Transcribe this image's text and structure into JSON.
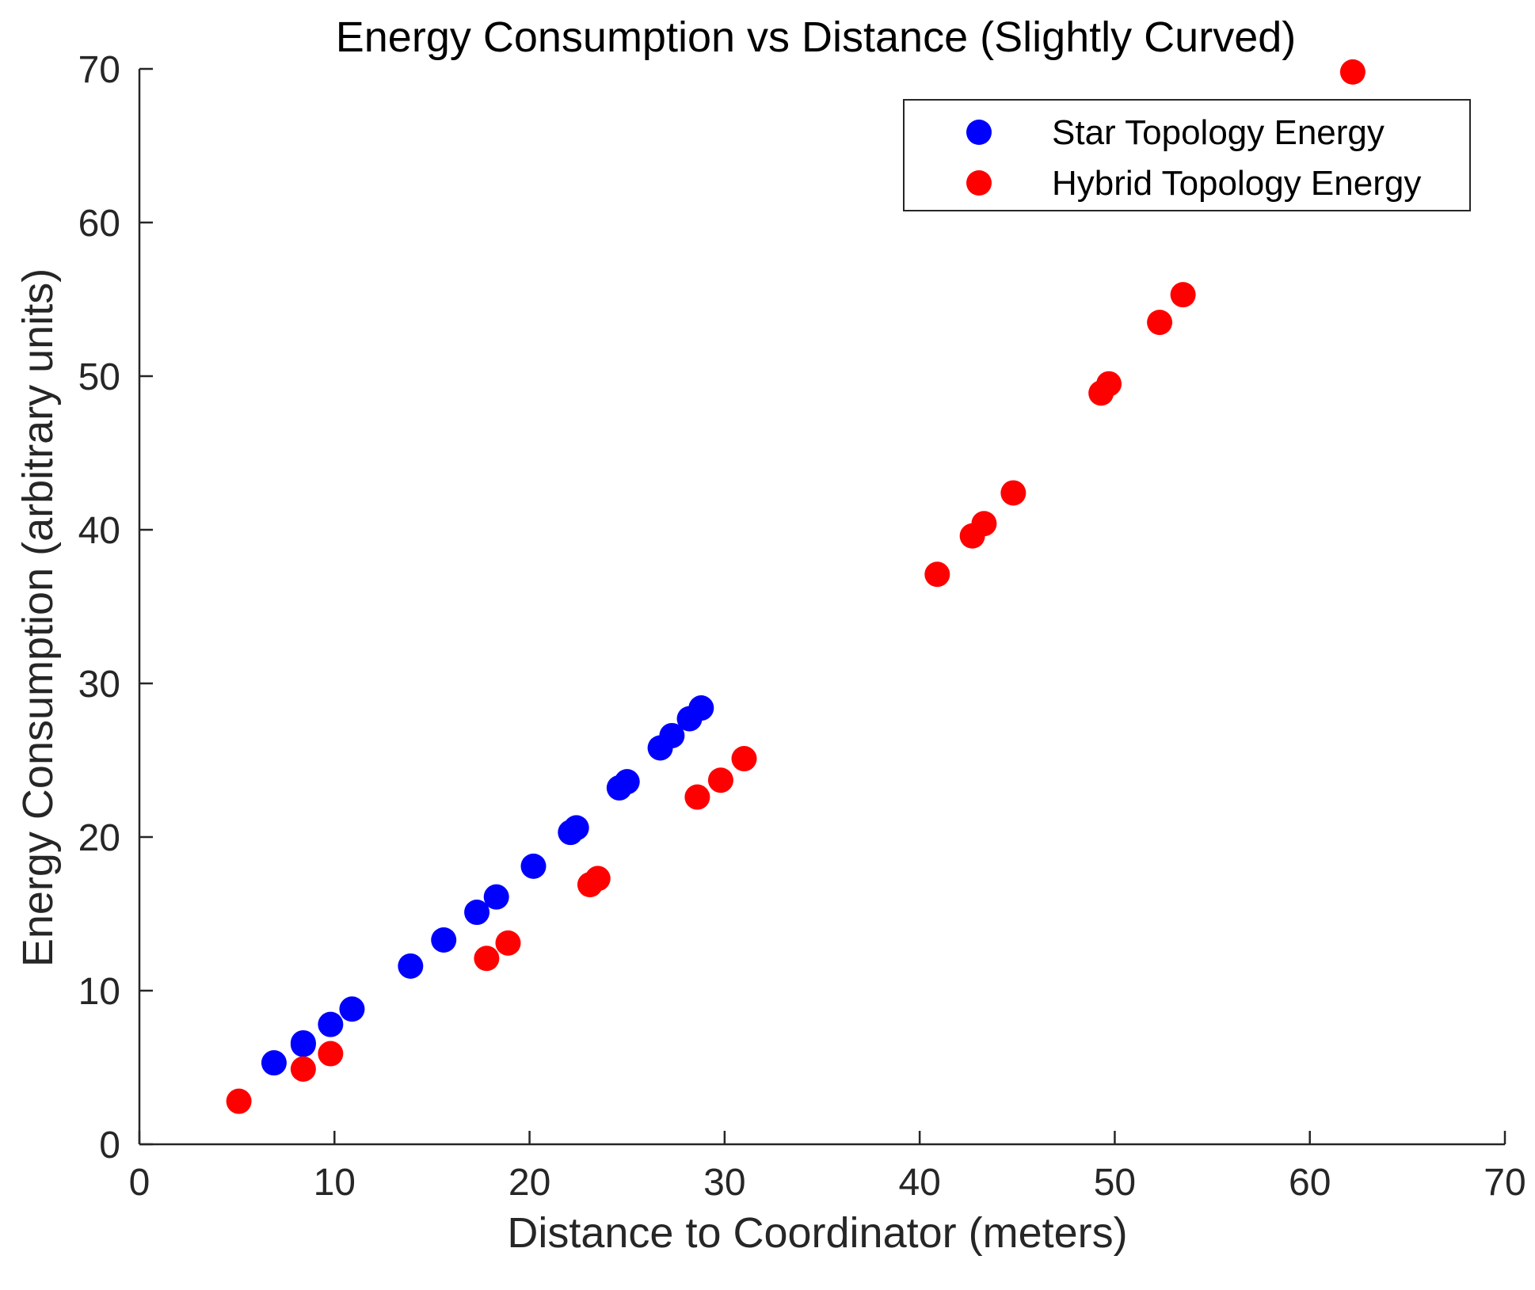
{
  "chart_data": {
    "type": "scatter",
    "title": "Energy Consumption vs Distance (Slightly Curved)",
    "xlabel": "Distance to Coordinator (meters)",
    "ylabel": "Energy Consumption (arbitrary units)",
    "xlim": [
      0,
      70
    ],
    "ylim": [
      0,
      70
    ],
    "xticks": [
      0,
      10,
      20,
      30,
      40,
      50,
      60,
      70
    ],
    "yticks": [
      0,
      10,
      20,
      30,
      40,
      50,
      60,
      70
    ],
    "grid": false,
    "legend_position": "top-right",
    "series": [
      {
        "name": "Star Topology Energy",
        "color": "#0000ff",
        "points": [
          {
            "x": 6.9,
            "y": 5.3
          },
          {
            "x": 8.4,
            "y": 6.5
          },
          {
            "x": 8.4,
            "y": 6.6
          },
          {
            "x": 9.8,
            "y": 7.8
          },
          {
            "x": 10.9,
            "y": 8.8
          },
          {
            "x": 13.9,
            "y": 11.6
          },
          {
            "x": 15.6,
            "y": 13.3
          },
          {
            "x": 17.3,
            "y": 15.1
          },
          {
            "x": 18.3,
            "y": 16.1
          },
          {
            "x": 20.2,
            "y": 18.1
          },
          {
            "x": 22.1,
            "y": 20.3
          },
          {
            "x": 22.4,
            "y": 20.6
          },
          {
            "x": 24.6,
            "y": 23.2
          },
          {
            "x": 25.0,
            "y": 23.6
          },
          {
            "x": 26.7,
            "y": 25.8
          },
          {
            "x": 27.3,
            "y": 26.6
          },
          {
            "x": 28.2,
            "y": 27.7
          },
          {
            "x": 28.8,
            "y": 28.4
          }
        ]
      },
      {
        "name": "Hybrid Topology Energy",
        "color": "#ff0000",
        "points": [
          {
            "x": 5.1,
            "y": 2.8
          },
          {
            "x": 8.4,
            "y": 4.9
          },
          {
            "x": 9.8,
            "y": 5.9
          },
          {
            "x": 17.8,
            "y": 12.1
          },
          {
            "x": 18.9,
            "y": 13.1
          },
          {
            "x": 23.1,
            "y": 16.9
          },
          {
            "x": 23.5,
            "y": 17.3
          },
          {
            "x": 28.6,
            "y": 22.6
          },
          {
            "x": 29.8,
            "y": 23.7
          },
          {
            "x": 31.0,
            "y": 25.1
          },
          {
            "x": 40.9,
            "y": 37.1
          },
          {
            "x": 42.7,
            "y": 39.6
          },
          {
            "x": 43.3,
            "y": 40.4
          },
          {
            "x": 44.8,
            "y": 42.4
          },
          {
            "x": 49.3,
            "y": 48.9
          },
          {
            "x": 49.7,
            "y": 49.5
          },
          {
            "x": 52.3,
            "y": 53.5
          },
          {
            "x": 53.5,
            "y": 55.3
          },
          {
            "x": 62.2,
            "y": 69.8
          }
        ]
      }
    ]
  }
}
